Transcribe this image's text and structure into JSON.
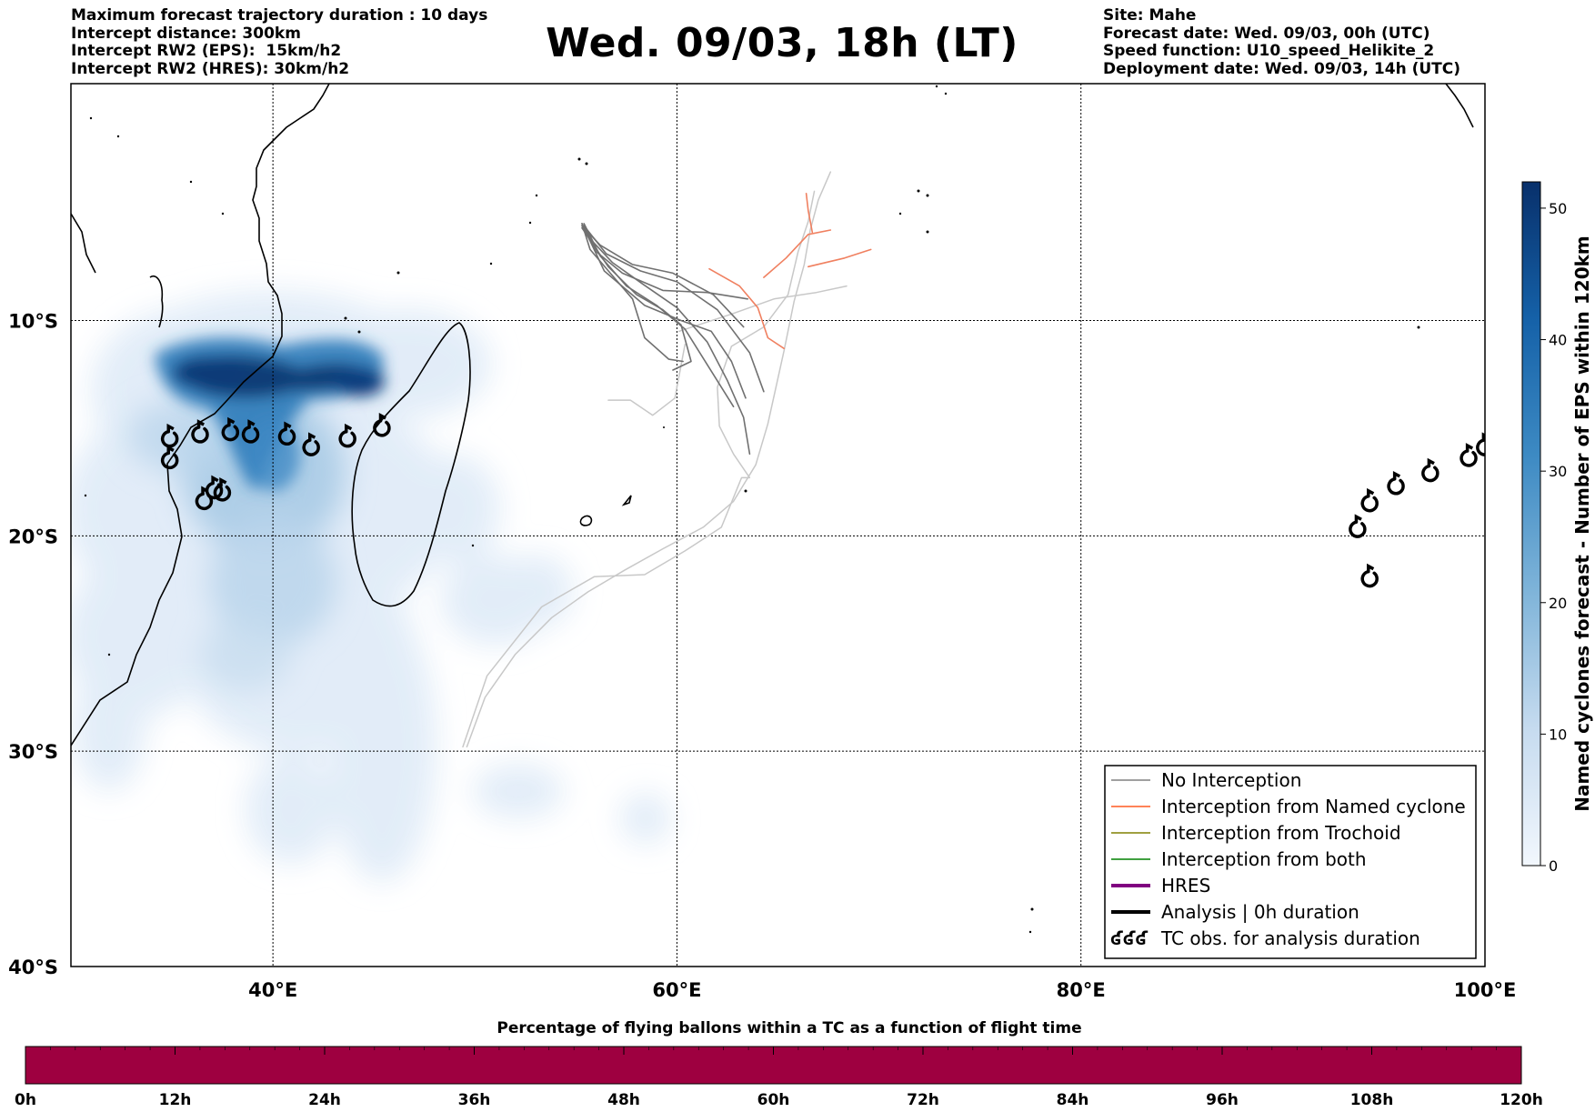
{
  "header": {
    "left_lines": [
      "Maximum forecast trajectory duration : 10 days",
      "Intercept distance: 300km",
      "Intercept RW2 (EPS):  15km/h2",
      "Intercept RW2 (HRES): 30km/h2"
    ],
    "title": "Wed. 09/03, 18h (LT)",
    "right_lines": [
      "Site: Mahe",
      "Forecast date: Wed. 09/03, 00h (UTC)",
      "Speed function: U10_speed_Helikite_2",
      "Deployment date: Wed. 09/03, 14h (UTC)"
    ]
  },
  "map": {
    "lon_range": [
      30,
      100
    ],
    "lat_range": [
      -40,
      1
    ],
    "lat_ticks": [
      {
        "value": -10,
        "label": "10°S"
      },
      {
        "value": -20,
        "label": "20°S"
      },
      {
        "value": -30,
        "label": "30°S"
      },
      {
        "value": -40,
        "label": "40°S"
      }
    ],
    "lon_ticks": [
      {
        "value": 40,
        "label": "40°E"
      },
      {
        "value": 60,
        "label": "60°E"
      },
      {
        "value": 80,
        "label": "80°E"
      },
      {
        "value": 100,
        "label": "100°E"
      }
    ],
    "gridlines": true,
    "no_interception_color": "#707070",
    "named_cyclone_color": "#f08060",
    "tc_obs_west": [
      [
        34.9,
        -15.5
      ],
      [
        36.4,
        -15.3
      ],
      [
        37.9,
        -15.2
      ],
      [
        38.9,
        -15.3
      ],
      [
        40.7,
        -15.4
      ],
      [
        41.9,
        -15.9
      ],
      [
        43.7,
        -15.5
      ],
      [
        45.4,
        -15.0
      ],
      [
        34.9,
        -16.5
      ],
      [
        36.6,
        -18.4
      ],
      [
        37.1,
        -17.9
      ],
      [
        37.5,
        -18.0
      ]
    ],
    "tc_obs_east": [
      [
        93.7,
        -19.7
      ],
      [
        94.3,
        -18.5
      ],
      [
        95.6,
        -17.7
      ],
      [
        97.3,
        -17.1
      ],
      [
        99.2,
        -16.4
      ],
      [
        100.0,
        -15.9
      ],
      [
        94.3,
        -22.0
      ]
    ],
    "eps_tracks_dark": [
      [
        [
          55.3,
          -5.5
        ],
        [
          55.8,
          -6.3
        ],
        [
          56.8,
          -7.3
        ],
        [
          58.3,
          -8.3
        ],
        [
          60.0,
          -9.4
        ],
        [
          61.5,
          -11.0
        ],
        [
          62.5,
          -12.8
        ],
        [
          63.3,
          -14.5
        ],
        [
          63.6,
          -16.2
        ]
      ],
      [
        [
          55.3,
          -5.6
        ],
        [
          56.0,
          -6.8
        ],
        [
          57.3,
          -7.8
        ],
        [
          59.3,
          -8.6
        ],
        [
          61.5,
          -8.7
        ],
        [
          63.5,
          -9.0
        ]
      ],
      [
        [
          55.4,
          -5.5
        ],
        [
          56.2,
          -7.0
        ],
        [
          57.5,
          -8.4
        ],
        [
          59.0,
          -9.3
        ],
        [
          60.4,
          -10.4
        ],
        [
          61.8,
          -12.5
        ],
        [
          62.8,
          -14.0
        ]
      ],
      [
        [
          55.3,
          -5.7
        ],
        [
          56.6,
          -7.5
        ],
        [
          58.0,
          -8.8
        ],
        [
          59.3,
          -9.5
        ],
        [
          60.2,
          -10.2
        ],
        [
          60.5,
          -11.2
        ],
        [
          60.7,
          -11.9
        ],
        [
          59.8,
          -12.3
        ]
      ],
      [
        [
          55.4,
          -5.6
        ],
        [
          56.5,
          -6.9
        ],
        [
          58.2,
          -7.7
        ],
        [
          60.0,
          -8.2
        ],
        [
          62.0,
          -9.5
        ],
        [
          63.6,
          -11.5
        ],
        [
          64.3,
          -13.3
        ]
      ],
      [
        [
          55.3,
          -5.6
        ],
        [
          56.2,
          -6.5
        ],
        [
          57.8,
          -7.4
        ],
        [
          59.8,
          -7.8
        ],
        [
          61.8,
          -8.8
        ],
        [
          63.3,
          -10.3
        ]
      ],
      [
        [
          55.3,
          -5.5
        ],
        [
          55.7,
          -6.7
        ],
        [
          56.7,
          -7.8
        ],
        [
          57.8,
          -9.0
        ],
        [
          58.4,
          -10.8
        ],
        [
          59.6,
          -11.8
        ],
        [
          60.3,
          -11.9
        ]
      ],
      [
        [
          55.4,
          -5.7
        ],
        [
          56.4,
          -7.7
        ],
        [
          58.4,
          -9.3
        ],
        [
          60.2,
          -10.0
        ],
        [
          61.7,
          -10.5
        ],
        [
          62.7,
          -11.9
        ],
        [
          63.4,
          -13.6
        ]
      ]
    ],
    "eps_tracks_light": [
      [
        [
          49.6,
          -29.8
        ],
        [
          50.5,
          -27.5
        ],
        [
          52.0,
          -25.5
        ],
        [
          53.8,
          -23.8
        ],
        [
          55.6,
          -22.6
        ],
        [
          57.4,
          -21.6
        ],
        [
          59.3,
          -20.6
        ],
        [
          61.3,
          -19.6
        ],
        [
          62.8,
          -18.4
        ],
        [
          63.9,
          -16.7
        ],
        [
          64.5,
          -14.8
        ],
        [
          65.3,
          -11.4
        ],
        [
          65.8,
          -9.1
        ],
        [
          66.3,
          -7.4
        ],
        [
          66.6,
          -5.8
        ],
        [
          67.0,
          -4.4
        ],
        [
          67.6,
          -3.1
        ]
      ],
      [
        [
          49.4,
          -29.8
        ],
        [
          50.6,
          -26.5
        ],
        [
          53.3,
          -23.3
        ],
        [
          55.9,
          -21.9
        ],
        [
          58.4,
          -21.8
        ],
        [
          60.4,
          -20.7
        ],
        [
          62.2,
          -19.6
        ],
        [
          63.2,
          -17.3
        ],
        [
          63.6,
          -17.3
        ],
        [
          62.8,
          -16.2
        ],
        [
          62.1,
          -14.9
        ],
        [
          62.0,
          -13.1
        ],
        [
          62.7,
          -11.2
        ],
        [
          64.3,
          -10.3
        ],
        [
          65.5,
          -8.8
        ],
        [
          66.0,
          -6.8
        ],
        [
          66.5,
          -5.4
        ],
        [
          66.8,
          -4.0
        ]
      ],
      [
        [
          56.6,
          -13.7
        ],
        [
          57.7,
          -13.7
        ],
        [
          58.8,
          -14.4
        ],
        [
          59.9,
          -13.6
        ],
        [
          60.4,
          -11.1
        ]
      ],
      [
        [
          60.1,
          -10.5
        ],
        [
          62.7,
          -9.7
        ],
        [
          64.8,
          -9.0
        ],
        [
          66.9,
          -8.7
        ],
        [
          68.4,
          -8.4
        ]
      ]
    ],
    "named_tracks": [
      [
        [
          61.6,
          -7.6
        ],
        [
          63.1,
          -8.4
        ],
        [
          64.0,
          -9.4
        ],
        [
          64.5,
          -10.8
        ],
        [
          65.3,
          -11.3
        ]
      ],
      [
        [
          64.3,
          -8.0
        ],
        [
          65.4,
          -7.1
        ],
        [
          66.5,
          -6.0
        ],
        [
          67.6,
          -5.8
        ]
      ],
      [
        [
          66.4,
          -4.1
        ],
        [
          66.5,
          -4.9
        ],
        [
          66.7,
          -5.9
        ]
      ],
      [
        [
          66.5,
          -7.5
        ],
        [
          68.3,
          -7.1
        ],
        [
          69.6,
          -6.7
        ]
      ]
    ]
  },
  "legend": {
    "items": [
      {
        "label": "No Interception",
        "color": "#808080",
        "width": 1.5
      },
      {
        "label": "Interception from Named cyclone",
        "color": "#ff5a20",
        "width": 1.5
      },
      {
        "label": "Interception from Trochoid",
        "color": "#808000",
        "width": 1.5
      },
      {
        "label": "Interception from both",
        "color": "#008000",
        "width": 1.5
      },
      {
        "label": "HRES",
        "color": "#800080",
        "width": 4
      },
      {
        "label": "Analysis | 0h duration",
        "color": "#000000",
        "width": 4
      },
      {
        "label": "TC obs. for analysis duration",
        "color": "#000000",
        "width": 0,
        "symbol": "ʛʛʛ"
      }
    ]
  },
  "colorbar": {
    "label": "Named cyclones forecast - Number of EPS within 120km",
    "min": 0,
    "max": 52,
    "ticks": [
      {
        "value": 0,
        "label": "0"
      },
      {
        "value": 10,
        "label": "10"
      },
      {
        "value": 20,
        "label": "20"
      },
      {
        "value": 30,
        "label": "30"
      },
      {
        "value": 40,
        "label": "40"
      },
      {
        "value": 50,
        "label": "50"
      }
    ],
    "color_low": "#e6eff9",
    "color_mid": "#4b97c9",
    "color_high": "#08306b"
  },
  "bottom_bar": {
    "title": "Percentage of flying ballons within a TC as a function of flight time",
    "bar_color": "#9e0040",
    "ticks": [
      "0h",
      "12h",
      "24h",
      "36h",
      "48h",
      "60h",
      "72h",
      "84h",
      "96h",
      "108h",
      "120h"
    ]
  }
}
